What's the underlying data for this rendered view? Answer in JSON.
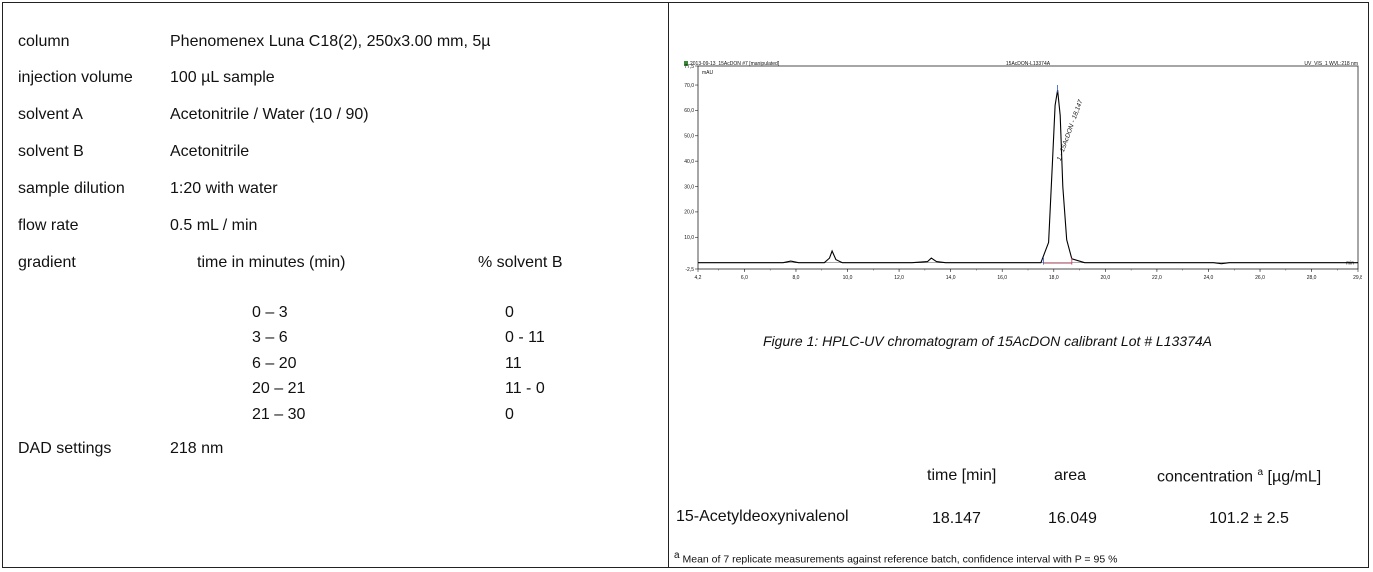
{
  "method": {
    "column": {
      "label": "column",
      "value": "Phenomenex Luna C18(2), 250x3.00 mm, 5µ"
    },
    "injection": {
      "label": "injection volume",
      "value": "100 µL sample"
    },
    "solvent_a": {
      "label": "solvent A",
      "value": "Acetonitrile / Water (10 / 90)"
    },
    "solvent_b": {
      "label": "solvent B",
      "value": "Acetonitrile"
    },
    "dilution": {
      "label": "sample dilution",
      "value": "1:20 with water"
    },
    "flow": {
      "label": "flow rate",
      "value": "0.5 mL / min"
    },
    "gradient": {
      "label": "gradient",
      "time_header": "time in minutes (min)",
      "solvent_header": "% solvent B",
      "rows": [
        {
          "time": "0 – 3",
          "pct": "0"
        },
        {
          "time": "3 – 6",
          "pct": "0 - 11"
        },
        {
          "time": "6 – 20",
          "pct": "11"
        },
        {
          "time": "20 – 21",
          "pct": "11 - 0"
        },
        {
          "time": "21 – 30",
          "pct": "0"
        }
      ]
    },
    "dad": {
      "label": "DAD settings",
      "value": "218 nm"
    }
  },
  "chart_data": {
    "type": "line",
    "header_left": "2013-09-13_15AcDON #7 [manipulated]",
    "header_center": "15AcDON-L13374A",
    "header_right": "UV_VIS_1 WVL:218 nm",
    "ylabel": "mAU",
    "xlabel": "min",
    "xlim": [
      4.2,
      29.8
    ],
    "ylim": [
      -2.5,
      77.5
    ],
    "x_ticks": [
      "4,2",
      "6,0",
      "8,0",
      "10,0",
      "12,0",
      "14,0",
      "16,0",
      "18,0",
      "20,0",
      "22,0",
      "24,0",
      "26,0",
      "28,0",
      "29,8"
    ],
    "x_tick_values": [
      4.2,
      6,
      8,
      10,
      12,
      14,
      16,
      18,
      20,
      22,
      24,
      26,
      28,
      29.8
    ],
    "y_ticks": [
      "-2,5",
      "10,0",
      "20,0",
      "30,0",
      "40,0",
      "50,0",
      "60,0",
      "70,0",
      "77,5"
    ],
    "y_tick_values": [
      -2.5,
      10,
      20,
      30,
      40,
      50,
      60,
      70,
      77.5
    ],
    "peak_label": "1 - 15AcDON - 18,147",
    "series": [
      {
        "x": [
          4.2,
          7.5,
          7.8,
          8.1,
          9.1,
          9.3,
          9.4,
          9.55,
          9.8,
          12.5,
          13.1,
          13.25,
          13.45,
          13.8,
          17.5,
          17.8,
          17.95,
          18.05,
          18.147,
          18.25,
          18.35,
          18.5,
          18.7,
          19.2,
          24.2,
          24.5,
          24.8,
          29.8
        ],
        "y": [
          0,
          0,
          0.6,
          0,
          0,
          1.8,
          4.6,
          1.2,
          0,
          0,
          0.4,
          1.8,
          0.4,
          0,
          0,
          8,
          40,
          62,
          68,
          58,
          30,
          9,
          1.5,
          0,
          0,
          -0.4,
          0,
          0
        ]
      }
    ],
    "baseline_markers": [
      17.6,
      18.7
    ]
  },
  "caption": "Figure 1: HPLC-UV chromatogram of  15AcDON calibrant Lot # L13374A",
  "results": {
    "header_time": "time [min]",
    "header_area": "area",
    "header_conc": "concentration",
    "header_conc_sup": "a",
    "header_conc_unit": "[µg/mL]",
    "compound": "15-Acetyldeoxynivalenol",
    "time": "18.147",
    "area": "16.049",
    "conc": "101.2 ± 2.5"
  },
  "footnote": {
    "sup": "a",
    "text": "Mean of 7 replicate measurements against reference batch, confidence interval with P = 95 %"
  }
}
